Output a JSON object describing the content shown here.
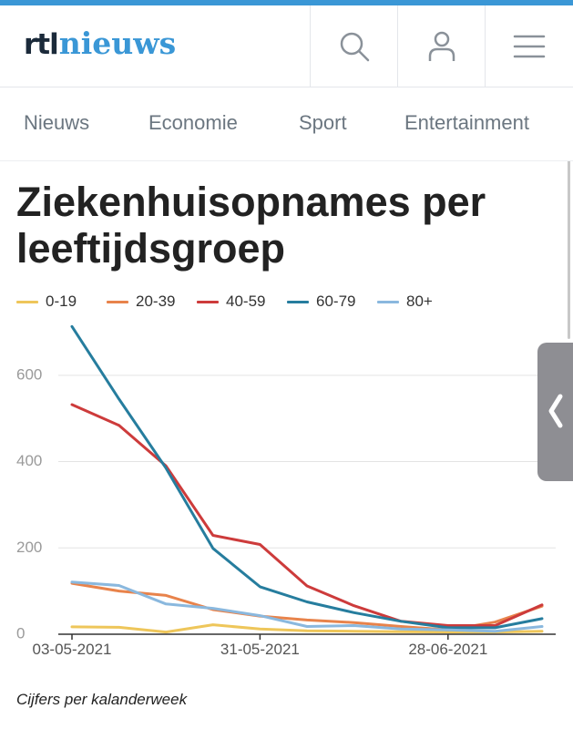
{
  "colors": {
    "accent": "#3a97d6",
    "topbar": "#3a97d6",
    "series": [
      "#eec65a",
      "#e8834b",
      "#cd3b3b",
      "#267d9e",
      "#8ab8de"
    ]
  },
  "header": {
    "logo_rtl": "rtl",
    "logo_nieuws": "nieuws",
    "icons": [
      "search-icon",
      "user-icon",
      "menu-icon"
    ]
  },
  "nav": {
    "items": [
      {
        "label": "Nieuws"
      },
      {
        "label": "Economie"
      },
      {
        "label": "Sport"
      },
      {
        "label": "Entertainment"
      }
    ]
  },
  "article": {
    "footnote": "Cijfers per kalanderweek"
  },
  "chart_data": {
    "type": "line",
    "title": "Ziekenhuisopnames per leeftijdsgroep",
    "xlabel": "",
    "ylabel": "",
    "x": [
      "03-05-2021",
      "10-05-2021",
      "17-05-2021",
      "24-05-2021",
      "31-05-2021",
      "07-06-2021",
      "14-06-2021",
      "21-06-2021",
      "28-06-2021",
      "05-07-2021",
      "12-07-2021"
    ],
    "x_tick_labels": [
      "03-05-2021",
      "31-05-2021",
      "28-06-2021"
    ],
    "ylim": [
      0,
      720
    ],
    "y_ticks": [
      0,
      200,
      400,
      600
    ],
    "grid": true,
    "legend_position": "top",
    "series": [
      {
        "name": "0-19",
        "values": [
          17,
          16,
          5,
          22,
          12,
          8,
          7,
          6,
          5,
          5,
          7
        ]
      },
      {
        "name": "20-39",
        "values": [
          118,
          100,
          90,
          57,
          42,
          33,
          27,
          18,
          10,
          28,
          65
        ]
      },
      {
        "name": "40-59",
        "values": [
          532,
          484,
          390,
          229,
          208,
          112,
          66,
          30,
          20,
          20,
          68
        ]
      },
      {
        "name": "60-79",
        "values": [
          713,
          545,
          385,
          199,
          110,
          75,
          50,
          30,
          15,
          15,
          36
        ]
      },
      {
        "name": "80+",
        "values": [
          121,
          113,
          70,
          60,
          43,
          18,
          20,
          12,
          10,
          7,
          18
        ]
      }
    ]
  }
}
